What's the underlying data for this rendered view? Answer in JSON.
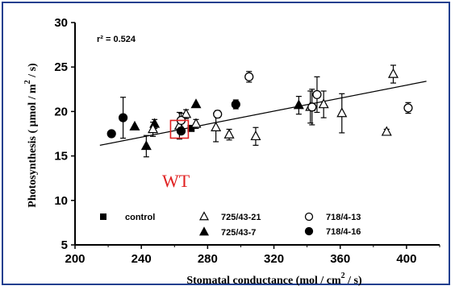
{
  "chart_data": {
    "type": "scatter",
    "xlabel_text": "Stomatal conductance  (mol / cm",
    "xlabel_sup": "2",
    "xlabel_tail": " / s)",
    "ylabel_text": "Photosynthesis  ( μmol / m",
    "ylabel_sup": "2",
    "ylabel_tail": " / s)",
    "xlim": [
      200,
      420
    ],
    "ylim": [
      5,
      30
    ],
    "xticks": [
      200,
      240,
      280,
      320,
      360,
      400
    ],
    "yticks": [
      5,
      10,
      15,
      20,
      25,
      30
    ],
    "annotation_r2": "r² = 0.524",
    "annotation_wt": "WT",
    "wt_box": {
      "x": 263,
      "y": 18.0
    },
    "regression": {
      "x1": 215,
      "y1": 16.2,
      "x2": 412,
      "y2": 23.4
    },
    "series": [
      {
        "name": "control",
        "marker": "square-filled",
        "points": [
          {
            "x": 270,
            "y": 18.1
          }
        ]
      },
      {
        "name": "725/43-7",
        "marker": "triangle-filled",
        "points": [
          {
            "x": 236,
            "y": 18.3
          },
          {
            "x": 243,
            "y": 16.1,
            "err": 1.2
          },
          {
            "x": 248,
            "y": 18.6,
            "err": 0.5
          },
          {
            "x": 273,
            "y": 20.8
          },
          {
            "x": 335,
            "y": 20.7,
            "err": 1.0
          }
        ]
      },
      {
        "name": "725/43-21",
        "marker": "triangle-open",
        "points": [
          {
            "x": 247,
            "y": 18.0,
            "err": 0.8
          },
          {
            "x": 263,
            "y": 18.4,
            "err": 1.5
          },
          {
            "x": 267,
            "y": 19.7,
            "err": 0.5
          },
          {
            "x": 273,
            "y": 18.6,
            "err": 0.5
          },
          {
            "x": 285,
            "y": 18.2,
            "err": 1.6
          },
          {
            "x": 293,
            "y": 17.4,
            "err": 0.6
          },
          {
            "x": 309,
            "y": 17.2,
            "err": 1.0
          },
          {
            "x": 342,
            "y": 20.5,
            "err": 1.8
          },
          {
            "x": 350,
            "y": 20.8,
            "err": 1.5
          },
          {
            "x": 361,
            "y": 19.8,
            "err": 2.2
          },
          {
            "x": 388,
            "y": 17.7,
            "err": 0.3
          },
          {
            "x": 392,
            "y": 24.2,
            "err": 1.0
          }
        ]
      },
      {
        "name": "718/4-13",
        "marker": "circle-open",
        "points": [
          {
            "x": 264,
            "y": 19.0,
            "err": 0.8
          },
          {
            "x": 286,
            "y": 19.7,
            "err": 0.4
          },
          {
            "x": 305,
            "y": 23.9,
            "err": 0.6
          },
          {
            "x": 343,
            "y": 20.5,
            "err": 2.0
          },
          {
            "x": 346,
            "y": 21.9,
            "err": 2.0
          },
          {
            "x": 401,
            "y": 20.4,
            "err": 0.6
          }
        ]
      },
      {
        "name": "718/4-16",
        "marker": "circle-filled",
        "points": [
          {
            "x": 222,
            "y": 17.5
          },
          {
            "x": 229,
            "y": 19.3,
            "err": 2.3
          },
          {
            "x": 264,
            "y": 17.8
          },
          {
            "x": 297,
            "y": 20.8,
            "err": 0.5
          }
        ]
      }
    ],
    "legend": [
      {
        "label": "control",
        "marker": "square-filled"
      },
      {
        "label": "725/43-21",
        "marker": "triangle-open"
      },
      {
        "label": "718/4-13",
        "marker": "circle-open"
      },
      {
        "label": "725/43-7",
        "marker": "triangle-filled"
      },
      {
        "label": "718/4-16",
        "marker": "circle-filled"
      }
    ],
    "colors": {
      "frame": "#1f3f8f",
      "wt": "#e02020",
      "ink": "#000000"
    }
  }
}
